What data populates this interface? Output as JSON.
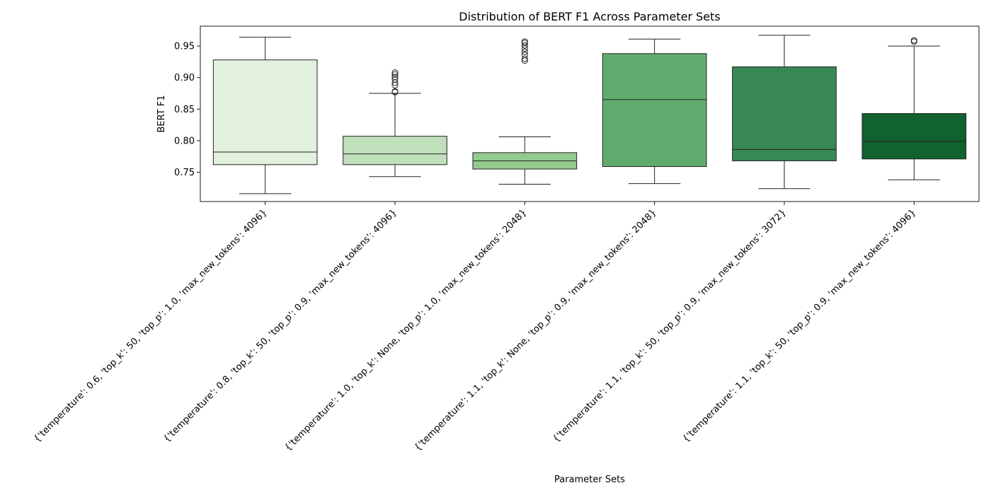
{
  "chart_data": {
    "type": "box",
    "title": "Distribution of BERT F1 Across Parameter Sets",
    "xlabel": "Parameter Sets",
    "ylabel": "BERT F1",
    "ylim": [
      0.7035,
      0.9815
    ],
    "yticks": [
      0.75,
      0.8,
      0.85,
      0.9,
      0.95
    ],
    "ytick_labels": [
      "0.75",
      "0.80",
      "0.85",
      "0.90",
      "0.95"
    ],
    "grid": false,
    "categories": [
      "{'temperature': 0.6, 'top_k': 50, 'top_p': 1.0, 'max_new_tokens': 4096}",
      "{'temperature': 0.8, 'top_k': 50, 'top_p': 0.9, 'max_new_tokens': 4096}",
      "{'temperature': 1.0, 'top_k': None, 'top_p': 1.0, 'max_new_tokens': 2048}",
      "{'temperature': 1.1, 'top_k': None, 'top_p': 0.9, 'max_new_tokens': 2048}",
      "{'temperature': 1.1, 'top_k': 50, 'top_p': 0.9, 'max_new_tokens': 3072}",
      "{'temperature': 1.1, 'top_k': 50, 'top_p': 0.9, 'max_new_tokens': 4096}"
    ],
    "boxes": [
      {
        "whislo": 0.716,
        "q1": 0.762,
        "med": 0.782,
        "q3": 0.928,
        "whishi": 0.964,
        "fliers": [],
        "color": "#e2f0de"
      },
      {
        "whislo": 0.743,
        "q1": 0.762,
        "med": 0.779,
        "q3": 0.807,
        "whishi": 0.875,
        "fliers": [
          0.877,
          0.878,
          0.888,
          0.892,
          0.897,
          0.901,
          0.905,
          0.908
        ],
        "color": "#c0dfbb"
      },
      {
        "whislo": 0.731,
        "q1": 0.755,
        "med": 0.768,
        "q3": 0.781,
        "whishi": 0.806,
        "fliers": [
          0.927,
          0.93,
          0.936,
          0.941,
          0.946,
          0.951,
          0.955,
          0.957
        ],
        "color": "#92cb8d"
      },
      {
        "whislo": 0.732,
        "q1": 0.759,
        "med": 0.865,
        "q3": 0.938,
        "whishi": 0.961,
        "fliers": [],
        "color": "#62ab6e"
      },
      {
        "whislo": 0.724,
        "q1": 0.768,
        "med": 0.786,
        "q3": 0.917,
        "whishi": 0.967,
        "fliers": [],
        "color": "#388854"
      },
      {
        "whislo": 0.738,
        "q1": 0.771,
        "med": 0.799,
        "q3": 0.843,
        "whishi": 0.95,
        "fliers": [
          0.957,
          0.959
        ],
        "color": "#10622f"
      }
    ]
  }
}
